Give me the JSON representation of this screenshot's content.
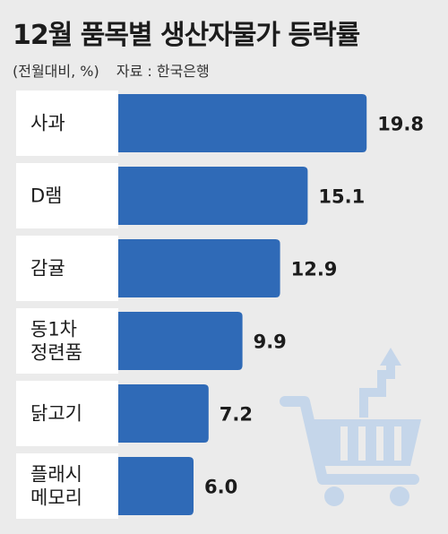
{
  "title": "12월 품목별 생산자물가 등락률",
  "unit": "(전월대비, %)",
  "source": "자료 : 한국은행",
  "colors": {
    "bar": "#2f6ab7",
    "label_box": "#ffffff",
    "background": "#ebebeb",
    "cart": "#c5d6ea"
  },
  "chart_data": {
    "type": "bar",
    "orientation": "horizontal",
    "categories": [
      [
        "사과"
      ],
      [
        "D램"
      ],
      [
        "감귤"
      ],
      [
        "동1차",
        "정련품"
      ],
      [
        "닭고기"
      ],
      [
        "플래시",
        "메모리"
      ]
    ],
    "values": [
      19.8,
      15.1,
      12.9,
      9.9,
      7.2,
      6.0
    ],
    "title": "12월 품목별 생산자물가 등락률",
    "xlabel": "",
    "ylabel": "",
    "xlim": [
      0,
      20
    ],
    "grid": false,
    "legend": "none"
  }
}
